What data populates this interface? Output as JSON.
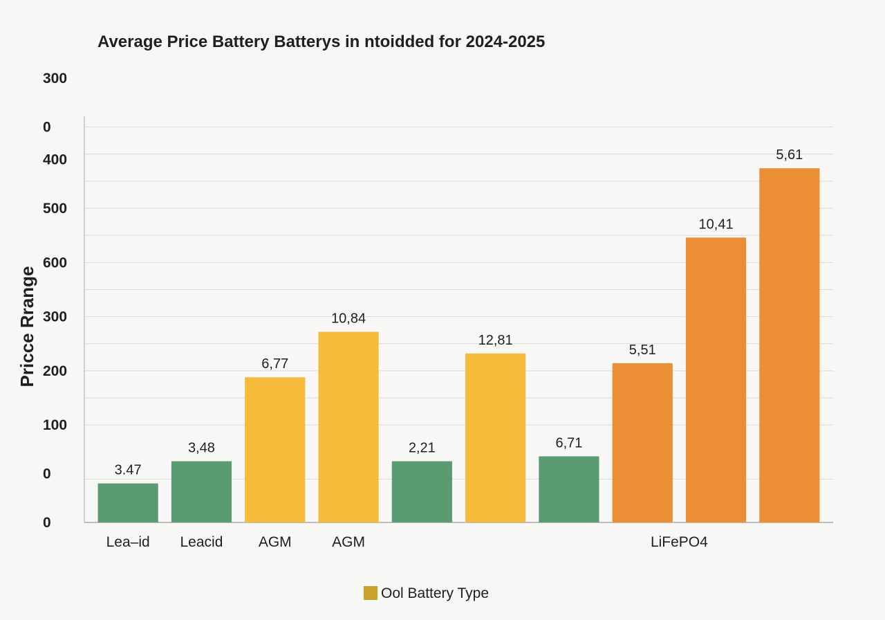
{
  "chart_data": {
    "type": "bar",
    "title": "Average Price Battery Batterys in ntoidded for 2024-2025",
    "ylabel": "Pricce Rrange",
    "xlabel": "",
    "ylim": [
      0,
      750
    ],
    "ytick_labels": [
      {
        "value": 0,
        "label": "0"
      },
      {
        "value": 90,
        "label": "0"
      },
      {
        "value": 180,
        "label": "100"
      },
      {
        "value": 280,
        "label": "200"
      },
      {
        "value": 380,
        "label": "300"
      },
      {
        "value": 480,
        "label": "600"
      },
      {
        "value": 580,
        "label": "500"
      },
      {
        "value": 670,
        "label": "400"
      },
      {
        "value": 730,
        "label": "0"
      },
      {
        "value": 820,
        "label": "300"
      }
    ],
    "gridlines": [
      0,
      80,
      180,
      230,
      280,
      330,
      380,
      430,
      480,
      530,
      580,
      630,
      680,
      730
    ],
    "bars": [
      {
        "value": 72,
        "label": "3.47",
        "color": "#5a9b72"
      },
      {
        "value": 113,
        "label": "3,48",
        "color": "#5a9b72"
      },
      {
        "value": 268,
        "label": "6,77",
        "color": "#f6bb3a"
      },
      {
        "value": 352,
        "label": "10,84",
        "color": "#f6bb3a"
      },
      {
        "value": 113,
        "label": "2,21",
        "color": "#5a9b72"
      },
      {
        "value": 312,
        "label": "12,81",
        "color": "#f6bb3a"
      },
      {
        "value": 122,
        "label": "6,71",
        "color": "#5a9b72"
      },
      {
        "value": 294,
        "label": "5,51",
        "color": "#ec8f34"
      },
      {
        "value": 526,
        "label": "10,41",
        "color": "#ec8f34"
      },
      {
        "value": 654,
        "label": "5,61",
        "color": "#ec8f34"
      }
    ],
    "x_group_labels": [
      {
        "label": "Lea–id",
        "bar": 0
      },
      {
        "label": "Leacid",
        "bar": 1
      },
      {
        "label": "AGM",
        "bar": 2
      },
      {
        "label": "AGM",
        "bar": 3
      },
      {
        "label": "LiFePO4",
        "bar": 7.5
      }
    ],
    "legend": {
      "label": "Ool Battery Type",
      "color": "#c8a22a",
      "position": "bottom-center"
    },
    "grid": true
  }
}
